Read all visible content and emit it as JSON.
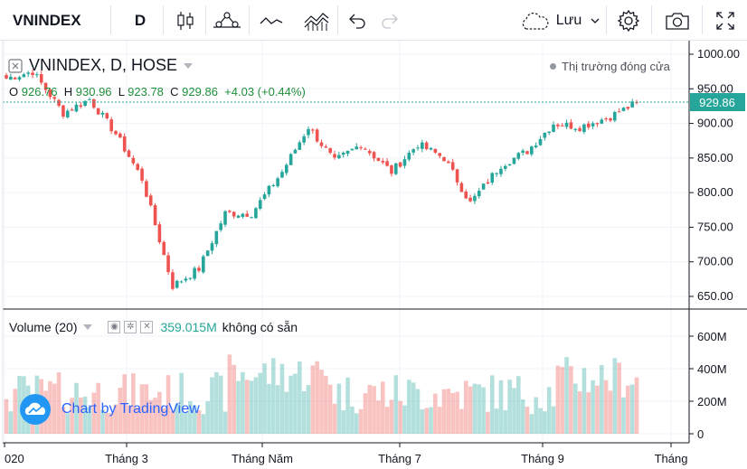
{
  "toolbar": {
    "symbol": "VNINDEX",
    "interval": "D",
    "save_label": "Lưu",
    "icons": [
      "candles-icon",
      "indicators-icon",
      "line-tool-icon",
      "templates-icon",
      "undo-icon",
      "redo-icon",
      "cloud-icon",
      "chevron-down-icon",
      "settings-icon",
      "camera-icon",
      "fullscreen-icon"
    ]
  },
  "legend": {
    "title": "VNINDEX, D, HOSE",
    "o_label": "O",
    "o_value": "926.76",
    "h_label": "H",
    "h_value": "930.96",
    "l_label": "L",
    "l_value": "923.78",
    "c_label": "C",
    "c_value": "929.86",
    "change": "+4.03 (+0.44%)",
    "market_status": "Thị trường đóng cửa"
  },
  "volume_legend": {
    "label": "Volume (20)",
    "value": "359.015M",
    "note": "không có sẵn"
  },
  "logo_text": "Chart by TradingView",
  "colors": {
    "up": "#26a69a",
    "down": "#ef5350",
    "accent": "#2962ff"
  },
  "chart_data": {
    "type": "candlestick",
    "price_axis": {
      "ticks": [
        "1000.00",
        "950.00",
        "900.00",
        "850.00",
        "800.00",
        "750.00",
        "700.00",
        "650.00"
      ],
      "range": [
        630,
        1005
      ]
    },
    "last_price": "929.86",
    "volume_axis": {
      "ticks": [
        "600M",
        "400M",
        "200M",
        "0"
      ],
      "range": [
        0,
        720
      ]
    },
    "time_axis": [
      "020",
      "Tháng 3",
      "Tháng Năm",
      "Tháng 7",
      "Tháng 9",
      "Tháng"
    ],
    "waypoints": [
      {
        "date": "2020-01",
        "close": 965
      },
      {
        "date": "2020-02-01",
        "close": 975
      },
      {
        "date": "2020-02-05",
        "close": 915
      },
      {
        "date": "2020-02-20",
        "close": 935
      },
      {
        "date": "2020-03-05",
        "close": 885
      },
      {
        "date": "2020-03-15",
        "close": 820
      },
      {
        "date": "2020-03-25",
        "close": 665
      },
      {
        "date": "2020-04-05",
        "close": 690
      },
      {
        "date": "2020-04-20",
        "close": 770
      },
      {
        "date": "2020-05-05",
        "close": 770
      },
      {
        "date": "2020-05-20",
        "close": 830
      },
      {
        "date": "2020-06-10",
        "close": 895
      },
      {
        "date": "2020-06-15",
        "close": 845
      },
      {
        "date": "2020-06-25",
        "close": 870
      },
      {
        "date": "2020-07-05",
        "close": 830
      },
      {
        "date": "2020-07-15",
        "close": 870
      },
      {
        "date": "2020-07-25",
        "close": 850
      },
      {
        "date": "2020-07-30",
        "close": 785
      },
      {
        "date": "2020-08-10",
        "close": 840
      },
      {
        "date": "2020-08-25",
        "close": 860
      },
      {
        "date": "2020-09-05",
        "close": 900
      },
      {
        "date": "2020-09-20",
        "close": 895
      },
      {
        "date": "2020-10-05",
        "close": 910
      },
      {
        "date": "2020-10-20",
        "close": 929.86
      }
    ]
  }
}
